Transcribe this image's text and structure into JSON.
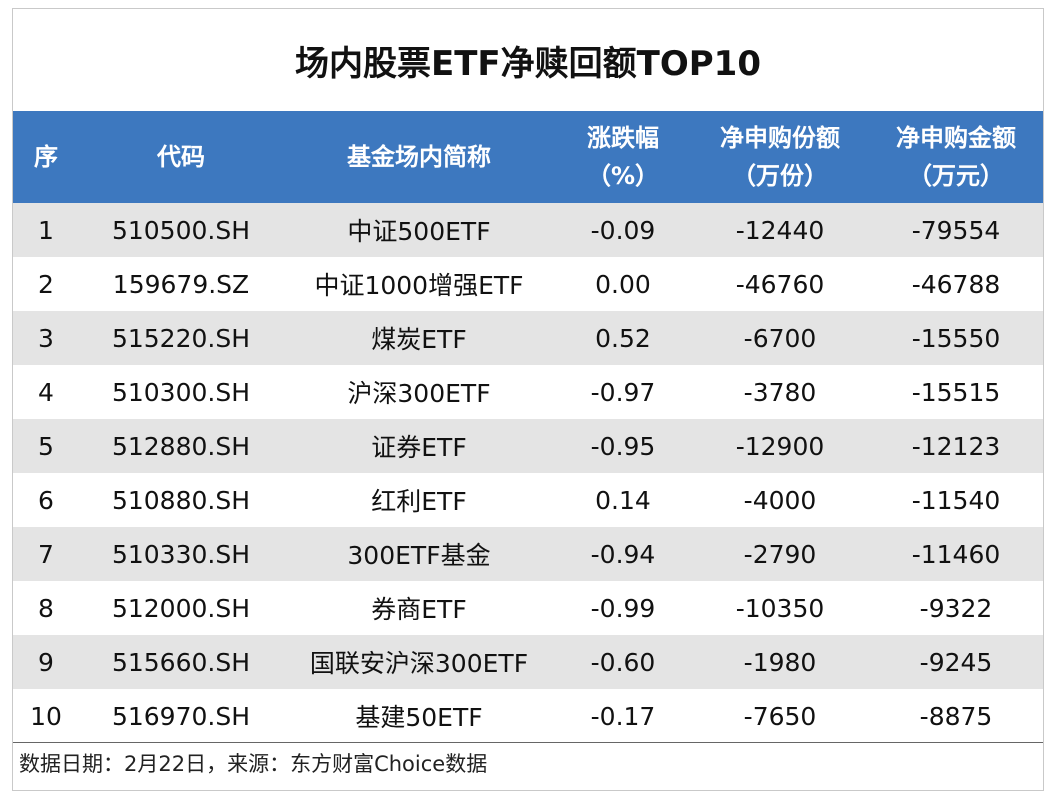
{
  "title": "场内股票ETF净赎回额TOP10",
  "columns": [
    {
      "line1": "序",
      "line2": ""
    },
    {
      "line1": "代码",
      "line2": ""
    },
    {
      "line1": "基金场内简称",
      "line2": ""
    },
    {
      "line1": "涨跌幅",
      "line2": "（%）"
    },
    {
      "line1": "净申购份额",
      "line2": "（万份）"
    },
    {
      "line1": "净申购金额",
      "line2": "（万元）"
    }
  ],
  "rows": [
    [
      "1",
      "510500.SH",
      "中证500ETF",
      "-0.09",
      "-12440",
      "-79554"
    ],
    [
      "2",
      "159679.SZ",
      "中证1000增强ETF",
      "0.00",
      "-46760",
      "-46788"
    ],
    [
      "3",
      "515220.SH",
      "煤炭ETF",
      "0.52",
      "-6700",
      "-15550"
    ],
    [
      "4",
      "510300.SH",
      "沪深300ETF",
      "-0.97",
      "-3780",
      "-15515"
    ],
    [
      "5",
      "512880.SH",
      "证券ETF",
      "-0.95",
      "-12900",
      "-12123"
    ],
    [
      "6",
      "510880.SH",
      "红利ETF",
      "0.14",
      "-4000",
      "-11540"
    ],
    [
      "7",
      "510330.SH",
      "300ETF基金",
      "-0.94",
      "-2790",
      "-11460"
    ],
    [
      "8",
      "512000.SH",
      "券商ETF",
      "-0.99",
      "-10350",
      "-9322"
    ],
    [
      "9",
      "515660.SH",
      "国联安沪深300ETF",
      "-0.60",
      "-1980",
      "-9245"
    ],
    [
      "10",
      "516970.SH",
      "基建50ETF",
      "-0.17",
      "-7650",
      "-8875"
    ]
  ],
  "footer": "数据日期：2月22日，来源：东方财富Choice数据",
  "colors": {
    "header_bg": "#3d78bf",
    "stripe": "#e4e4e4"
  }
}
